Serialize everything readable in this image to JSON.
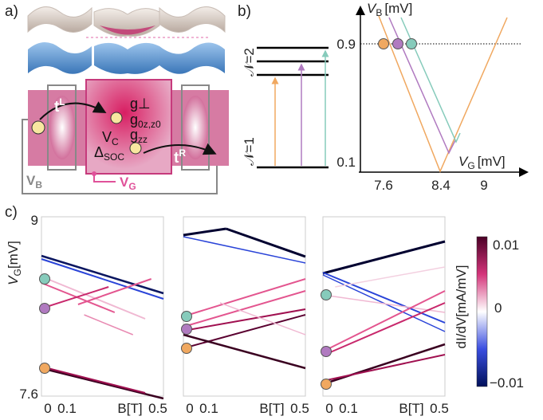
{
  "panel_a": {
    "label": "a)",
    "t_left": {
      "symbol": "t",
      "sup": "L"
    },
    "g_perp": "g⊥",
    "g_0": {
      "symbol": "g",
      "sub": "0z,z0"
    },
    "v_c": {
      "symbol": "V",
      "sub": "C"
    },
    "g_zz": {
      "symbol": "g",
      "sub": "zz"
    },
    "delta_soc": {
      "symbol": "Δ",
      "sub": "SOC"
    },
    "t_right": {
      "symbol": "t",
      "sup": "R"
    },
    "v_b": {
      "symbol": "V",
      "sub": "B"
    },
    "v_g": {
      "symbol": "V",
      "sub": "G"
    }
  },
  "panel_b": {
    "label": "b)",
    "level_2": "𝒩=2",
    "level_1": "𝒩=1",
    "y_label": {
      "symbol": "V",
      "sub": "B",
      "unit": "[mV]"
    },
    "x_label": {
      "symbol": "V",
      "sub": "G",
      "unit": "[mV]"
    },
    "y_ticks": [
      "0.9",
      "0.1"
    ],
    "x_ticks": [
      "7.6",
      "8.4",
      "9"
    ]
  },
  "panel_c": {
    "label": "c)",
    "y_label": {
      "symbol": "V",
      "sub": "G",
      "unit": "[mV]"
    },
    "y_ticks": [
      "9",
      "7.6"
    ],
    "subplots": [
      {
        "x_labels": [
          "0",
          "0.1",
          "B[T]",
          "0.5"
        ]
      },
      {
        "x_labels": [
          "0",
          "0.1",
          "B[T]",
          "0.5"
        ]
      },
      {
        "x_labels": [
          "0",
          "0.1",
          "B[T]",
          "0.5"
        ]
      }
    ],
    "colorbar": {
      "label": "dI/dV[mA/mV]",
      "ticks": [
        "0.01",
        "0",
        "−0.01"
      ]
    }
  }
}
